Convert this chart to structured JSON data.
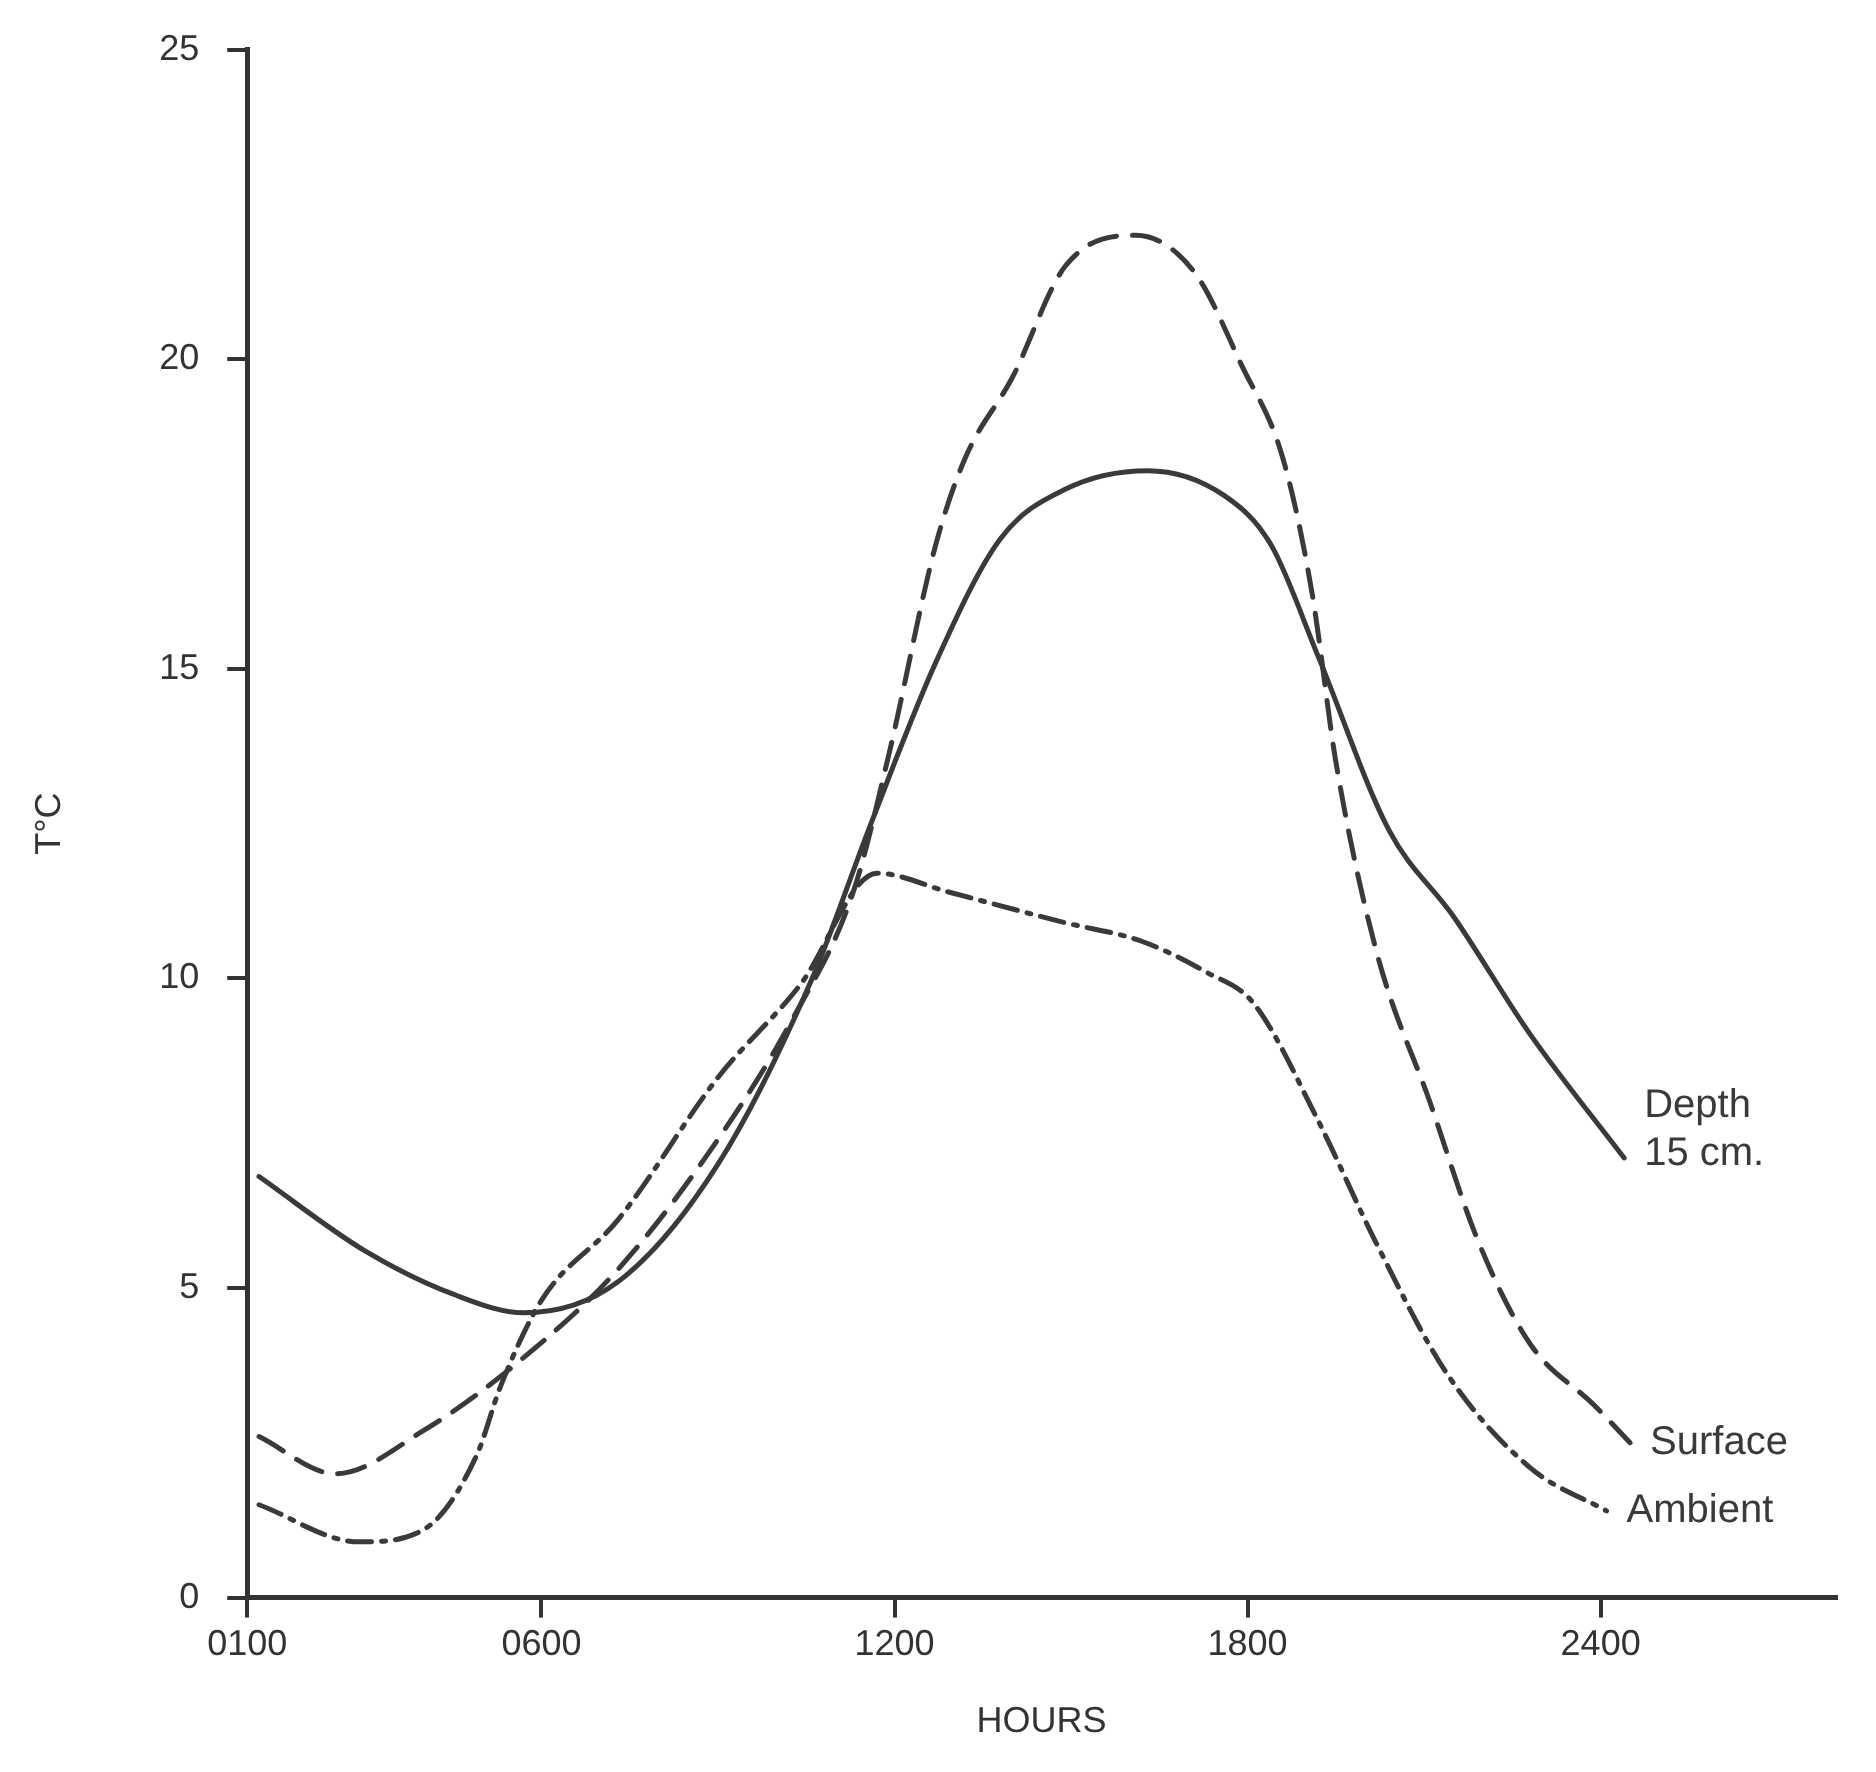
{
  "chart_data": {
    "type": "line",
    "xlabel": "HOURS",
    "ylabel": "T°C",
    "xlim": [
      100,
      2800
    ],
    "xticks": [
      {
        "value": 100,
        "label": "0100"
      },
      {
        "value": 600,
        "label": "0600"
      },
      1200,
      1800,
      2400
    ],
    "ylim": [
      0,
      25
    ],
    "yticks": [
      0,
      5,
      10,
      15,
      20,
      25
    ],
    "grid": false,
    "legend": false,
    "marker": "none",
    "series": [
      {
        "name": "Depth 15 cm.",
        "color": "#3a3a3a",
        "line_style": "solid",
        "x": [
          120,
          300,
          450,
          570,
          730,
          900,
          1060,
          1160,
          1270,
          1380,
          1490,
          1630,
          1760,
          1840,
          1920,
          2040,
          2150,
          2280,
          2440
        ],
        "values": [
          6.8,
          5.6,
          4.9,
          4.6,
          5.1,
          7,
          10,
          12.5,
          15.1,
          17.1,
          17.9,
          18.2,
          17.8,
          17,
          15.2,
          12.4,
          11,
          9.1,
          7.1
        ]
      },
      {
        "name": "Surface",
        "color": "#3a3a3a",
        "line_style": "dashed",
        "x": [
          120,
          250,
          400,
          560,
          730,
          900,
          1030,
          1130,
          1190,
          1270,
          1320,
          1400,
          1490,
          1610,
          1710,
          1790,
          1860,
          1910,
          1950,
          2020,
          2110,
          2190,
          2280,
          2390,
          2450
        ],
        "values": [
          2.6,
          2,
          2.7,
          3.8,
          5.3,
          7.4,
          9.4,
          11.4,
          13.6,
          17,
          18.4,
          19.7,
          21.5,
          22,
          21.4,
          19.9,
          18.4,
          16.2,
          13.5,
          10.4,
          8,
          5.8,
          4.1,
          3.1,
          2.5
        ]
      },
      {
        "name": "Ambient",
        "color": "#3a3a3a",
        "line_style": "dashdot",
        "x": [
          120,
          290,
          400,
          490,
          530,
          600,
          730,
          900,
          1040,
          1170,
          1290,
          1490,
          1620,
          1730,
          1810,
          1920,
          2020,
          2140,
          2280,
          2410
        ],
        "values": [
          1.5,
          0.9,
          1.1,
          2.3,
          3.4,
          4.8,
          6.1,
          8.4,
          9.9,
          11.7,
          11.4,
          10.9,
          10.6,
          10.1,
          9.6,
          7.7,
          5.7,
          3.6,
          2.1,
          1.4
        ]
      }
    ]
  }
}
